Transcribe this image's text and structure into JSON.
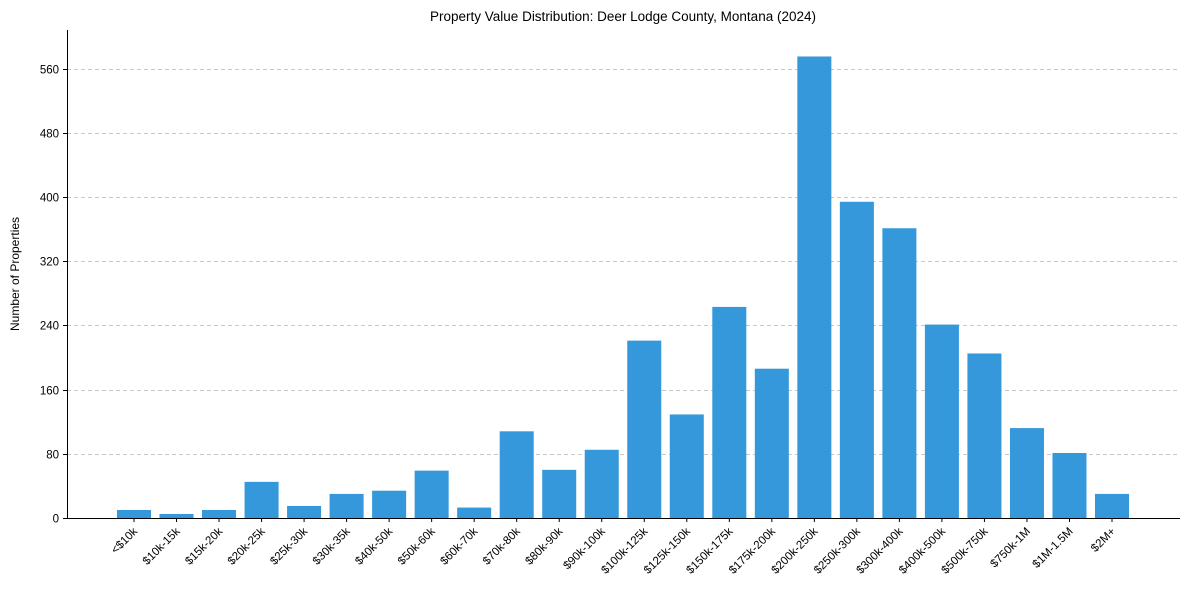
{
  "chart_data": {
    "type": "bar",
    "title": "Property Value Distribution: Deer Lodge County, Montana (2024)",
    "xlabel": "",
    "ylabel": "Number of Properties",
    "ylim": [
      0,
      608
    ],
    "yticks": [
      0,
      80,
      160,
      240,
      320,
      400,
      480,
      560
    ],
    "grid": "y-dashed",
    "bar_color": "#3498db",
    "categories": [
      "<$10k",
      "$10k-15k",
      "$15k-20k",
      "$20k-25k",
      "$25k-30k",
      "$30k-35k",
      "$40k-50k",
      "$50k-60k",
      "$60k-70k",
      "$70k-80k",
      "$80k-90k",
      "$90k-100k",
      "$100k-125k",
      "$125k-150k",
      "$150k-175k",
      "$175k-200k",
      "$200k-250k",
      "$250k-300k",
      "$300k-400k",
      "$400k-500k",
      "$500k-750k",
      "$750k-1M",
      "$1M-1.5M",
      "$2M+"
    ],
    "values": [
      10,
      5,
      10,
      45,
      15,
      30,
      34,
      59,
      13,
      108,
      60,
      85,
      221,
      129,
      263,
      186,
      575,
      394,
      361,
      241,
      205,
      112,
      81,
      30
    ]
  }
}
